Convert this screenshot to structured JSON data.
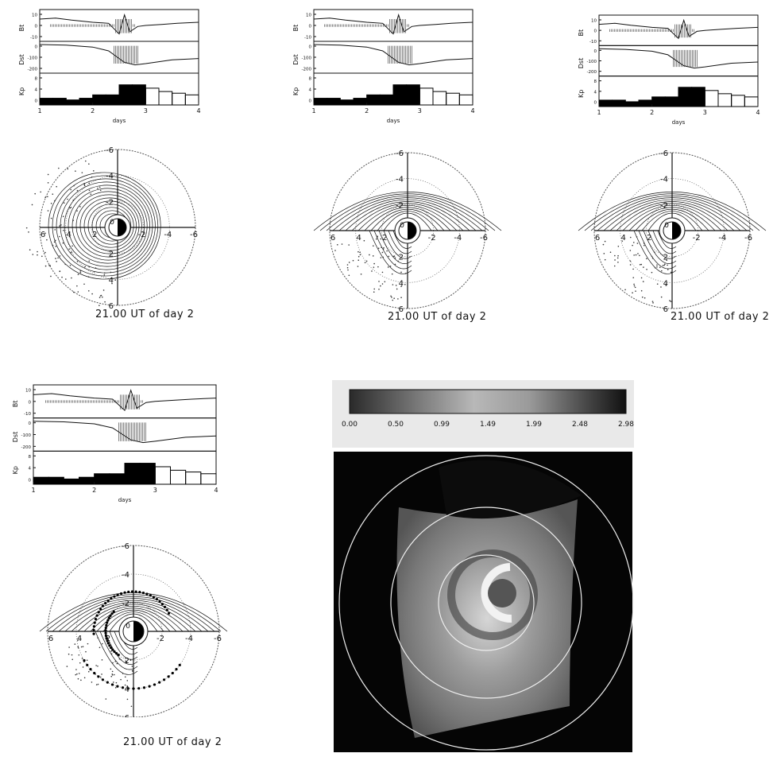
{
  "timeseries_panel": {
    "ylabels": [
      "Bt",
      "Dst",
      "Kp"
    ],
    "bt_ticks": [
      "10",
      "0",
      "-10"
    ],
    "dst_ticks": [
      "0",
      "-100",
      "-200"
    ],
    "kp_ticks": [
      "8",
      "4",
      "0"
    ],
    "x_ticks": [
      "1",
      "2",
      "3",
      "4"
    ],
    "xlabel": "days"
  },
  "polar_panel": {
    "top_ticks": [
      "-6",
      "-4",
      "-2",
      "0"
    ],
    "bottom_ticks": [
      "2",
      "4",
      "6"
    ],
    "left_ticks": [
      "6",
      "4",
      "2"
    ],
    "right_ticks": [
      "-2",
      "-4",
      "-6"
    ],
    "caption": "21.00 UT of day 2"
  },
  "colorbar": {
    "ticks": [
      "0.00",
      "0.50",
      "0.99",
      "1.49",
      "1.99",
      "2.48",
      "2.98"
    ]
  },
  "chart_data": [
    {
      "type": "line",
      "panel": "solar-wind-and-Kp",
      "xlabel": "days",
      "x_range": [
        1,
        4
      ],
      "x_ticks": [
        1,
        2,
        3,
        4
      ],
      "series": [
        {
          "name": "Bt",
          "x": [
            1.0,
            1.3,
            1.6,
            2.0,
            2.3,
            2.5,
            2.6,
            2.7,
            2.85,
            3.0,
            3.3,
            3.6,
            4.0
          ],
          "values": [
            6,
            7,
            5,
            3,
            2,
            -8,
            10,
            -6,
            -1,
            0,
            1,
            2,
            3
          ]
        },
        {
          "name": "Dst",
          "x": [
            1.0,
            1.5,
            2.0,
            2.3,
            2.6,
            2.8,
            3.0,
            3.5,
            4.0
          ],
          "values": [
            0,
            -5,
            -20,
            -50,
            -140,
            -160,
            -150,
            -120,
            -110
          ]
        }
      ]
    },
    {
      "type": "bar",
      "panel": "Kp",
      "ylabel": "Kp",
      "categories": [
        "1.0",
        "1.25",
        "1.5",
        "1.75",
        "2.0",
        "2.25",
        "2.5",
        "2.75",
        "3.0",
        "3.25",
        "3.5",
        "3.75"
      ],
      "values": [
        2,
        2,
        1.5,
        2,
        3,
        3,
        6,
        6,
        5,
        4,
        3.5,
        3
      ],
      "ylim": [
        0,
        9
      ]
    }
  ]
}
